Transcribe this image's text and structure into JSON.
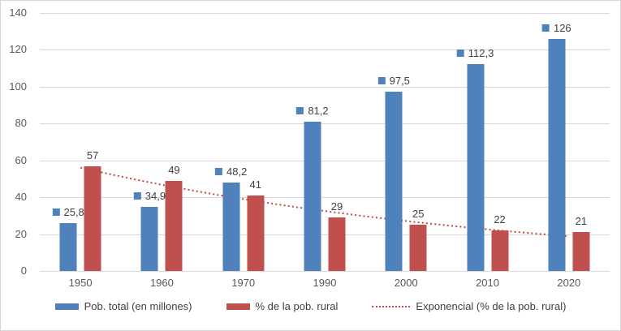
{
  "chart_data": {
    "type": "bar",
    "title": "",
    "categories": [
      "1950",
      "1960",
      "1970",
      "1990",
      "2000",
      "2010",
      "2020"
    ],
    "series": [
      {
        "name": "Pob. total (en millones)",
        "color": "#4F81BD",
        "values": [
          25.8,
          34.9,
          48.2,
          81.2,
          97.5,
          112.3,
          126
        ],
        "labels": [
          "25,8",
          "34,9",
          "48,2",
          "81,2",
          "97,5",
          "112,3",
          "126"
        ],
        "legend_key_in_labels": true
      },
      {
        "name": "% de la pob. rural",
        "color": "#C0504D",
        "values": [
          57,
          49,
          41,
          29,
          25,
          22,
          21
        ],
        "labels": [
          "57",
          "49",
          "41",
          "29",
          "25",
          "22",
          "21"
        ],
        "legend_key_in_labels": false
      }
    ],
    "trendline": {
      "name": "Exponencial (% de la pob. rural)",
      "color": "#C84742",
      "fit": "exponential",
      "a": 56.1,
      "b": -0.1818,
      "endpoints": [
        56.1,
        18.9
      ]
    },
    "y_axis": {
      "min": 0,
      "max": 140,
      "step": 20,
      "ticks": [
        "0",
        "20",
        "40",
        "60",
        "80",
        "100",
        "120",
        "140"
      ]
    },
    "grid": true,
    "gridline_color": "#D9D9D9",
    "legend_position": "bottom",
    "background": "#FFFFFF",
    "axis_text_color": "#595959",
    "data_label_color": "#404040"
  }
}
